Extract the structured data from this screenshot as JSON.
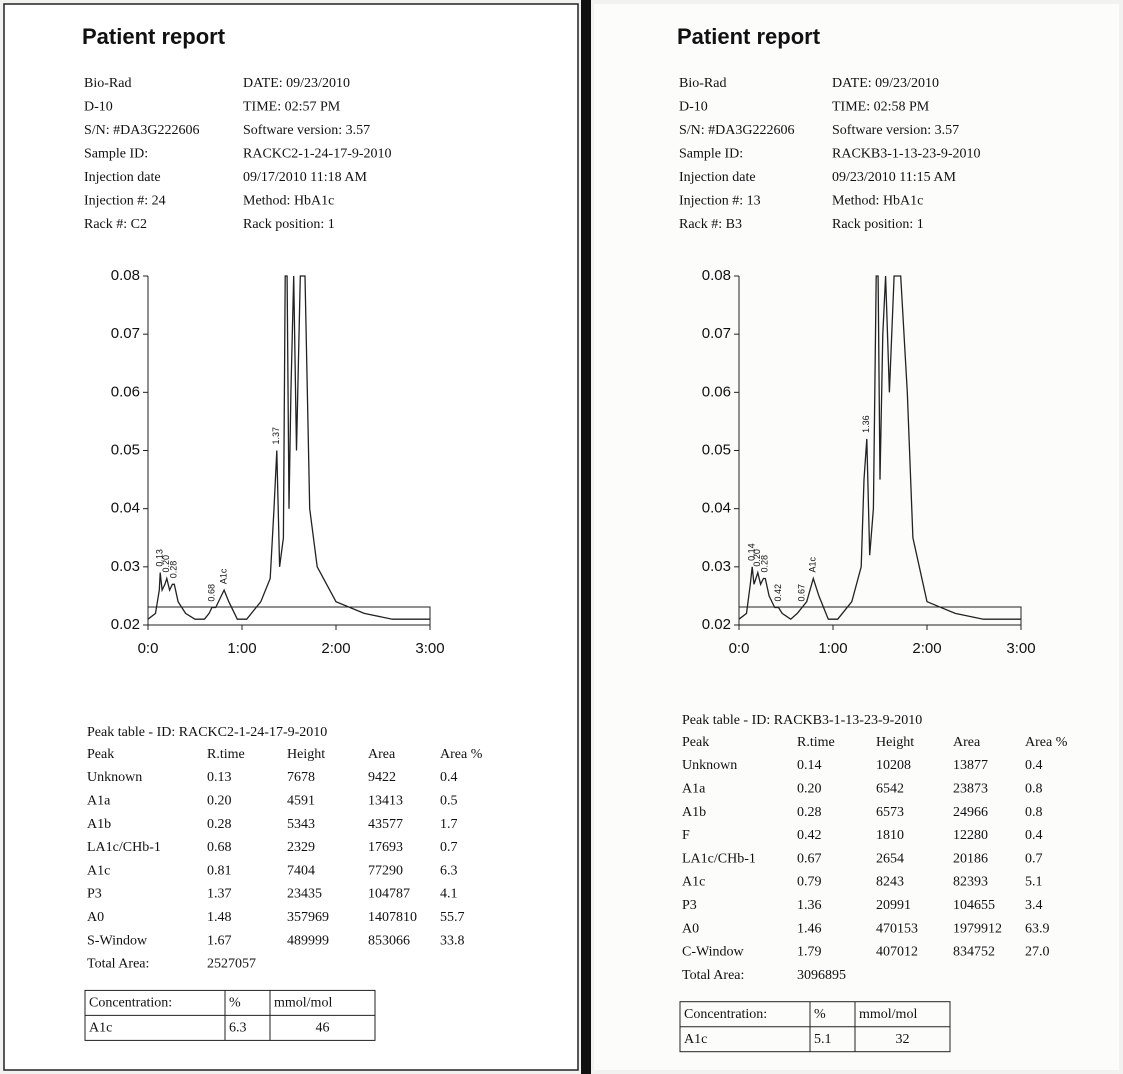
{
  "reports": [
    {
      "title": "Patient report",
      "header": [
        [
          "Bio-Rad",
          "DATE: 09/23/2010"
        ],
        [
          "D-10",
          "TIME:  02:57 PM"
        ],
        [
          "S/N: #DA3G222606",
          "Software version: 3.57"
        ],
        [
          "Sample ID:",
          "RACKC2-1-24-17-9-2010"
        ],
        [
          "Injection date",
          "09/17/2010 11:18 AM"
        ],
        [
          "Injection #: 24",
          "Method: HbA1c"
        ],
        [
          "Rack #: C2",
          "Rack position: 1"
        ]
      ],
      "chromatogram": {
        "type": "line",
        "xlim": [
          0,
          3
        ],
        "ylim": [
          0.02,
          0.08
        ],
        "yticks": [
          0.02,
          0.03,
          0.04,
          0.05,
          0.06,
          0.07,
          0.08
        ],
        "xticks": [
          {
            "value": 0,
            "label": "0:0"
          },
          {
            "value": 1,
            "label": "1:00"
          },
          {
            "value": 2,
            "label": "2:00"
          },
          {
            "value": 3,
            "label": "3:00"
          }
        ],
        "x": [
          0,
          0.08,
          0.12,
          0.13,
          0.15,
          0.18,
          0.2,
          0.23,
          0.26,
          0.28,
          0.32,
          0.4,
          0.5,
          0.6,
          0.65,
          0.68,
          0.72,
          0.78,
          0.81,
          0.86,
          0.95,
          1.05,
          1.2,
          1.3,
          1.34,
          1.37,
          1.4,
          1.44,
          1.46,
          1.48,
          1.5,
          1.52,
          1.55,
          1.58,
          1.62,
          1.67,
          1.72,
          1.8,
          2.0,
          2.3,
          2.6,
          3.0
        ],
        "y": [
          0.021,
          0.022,
          0.026,
          0.029,
          0.026,
          0.027,
          0.028,
          0.026,
          0.027,
          0.027,
          0.024,
          0.022,
          0.021,
          0.021,
          0.022,
          0.023,
          0.023,
          0.025,
          0.026,
          0.024,
          0.021,
          0.021,
          0.024,
          0.028,
          0.04,
          0.05,
          0.03,
          0.035,
          0.08,
          0.08,
          0.04,
          0.06,
          0.08,
          0.05,
          0.08,
          0.08,
          0.04,
          0.03,
          0.024,
          0.022,
          0.021,
          0.021
        ],
        "color": "#222",
        "peak_labels": [
          {
            "x": 0.13,
            "label": "0.13"
          },
          {
            "x": 0.2,
            "label": "0.20"
          },
          {
            "x": 0.28,
            "label": "0.28"
          },
          {
            "x": 0.68,
            "label": "0.68"
          },
          {
            "x": 0.81,
            "label": "A1c"
          },
          {
            "x": 1.37,
            "label": "1.37"
          }
        ]
      },
      "peak_table": {
        "title": "Peak table  -  ID: RACKC2-1-24-17-9-2010",
        "columns": [
          "Peak",
          "R.time",
          "Height",
          "Area",
          "Area %"
        ],
        "rows": [
          [
            "Unknown",
            "0.13",
            "7678",
            "9422",
            "0.4"
          ],
          [
            "A1a",
            "0.20",
            "4591",
            "13413",
            "0.5"
          ],
          [
            "A1b",
            "0.28",
            "5343",
            "43577",
            "1.7"
          ],
          [
            "LA1c/CHb-1",
            "0.68",
            "2329",
            "17693",
            "0.7"
          ],
          [
            "A1c",
            "0.81",
            "7404",
            "77290",
            "6.3"
          ],
          [
            "P3",
            "1.37",
            "23435",
            "104787",
            "4.1"
          ],
          [
            "A0",
            "1.48",
            "357969",
            "1407810",
            "55.7"
          ],
          [
            "S-Window",
            "1.67",
            "489999",
            "853066",
            "33.8"
          ]
        ],
        "total": [
          "Total Area:",
          "2527057"
        ]
      },
      "concentration": [
        [
          "Concentration:",
          "%",
          "mmol/mol"
        ],
        [
          "A1c",
          "6.3",
          "46"
        ]
      ]
    },
    {
      "title": "Patient report",
      "header": [
        [
          "Bio-Rad",
          "DATE: 09/23/2010"
        ],
        [
          "D-10",
          "TIME:  02:58 PM"
        ],
        [
          "S/N: #DA3G222606",
          "Software version: 3.57"
        ],
        [
          "Sample ID:",
          "RACKB3-1-13-23-9-2010"
        ],
        [
          "Injection date",
          "09/23/2010 11:15 AM"
        ],
        [
          "Injection #: 13",
          "Method: HbA1c"
        ],
        [
          "Rack #: B3",
          "Rack position: 1"
        ]
      ],
      "chromatogram": {
        "type": "line",
        "xlim": [
          0,
          3
        ],
        "ylim": [
          0.02,
          0.08
        ],
        "yticks": [
          0.02,
          0.03,
          0.04,
          0.05,
          0.06,
          0.07,
          0.08
        ],
        "xticks": [
          {
            "value": 0,
            "label": "0:0"
          },
          {
            "value": 1,
            "label": "1:00"
          },
          {
            "value": 2,
            "label": "2:00"
          },
          {
            "value": 3,
            "label": "3:00"
          }
        ],
        "x": [
          0,
          0.08,
          0.12,
          0.14,
          0.16,
          0.18,
          0.2,
          0.23,
          0.26,
          0.28,
          0.32,
          0.38,
          0.42,
          0.46,
          0.55,
          0.62,
          0.67,
          0.72,
          0.79,
          0.85,
          0.95,
          1.05,
          1.2,
          1.3,
          1.33,
          1.36,
          1.39,
          1.43,
          1.46,
          1.48,
          1.5,
          1.53,
          1.56,
          1.6,
          1.65,
          1.72,
          1.79,
          1.85,
          2.0,
          2.3,
          2.6,
          3.0
        ],
        "y": [
          0.021,
          0.022,
          0.027,
          0.03,
          0.027,
          0.028,
          0.029,
          0.027,
          0.028,
          0.028,
          0.025,
          0.023,
          0.023,
          0.022,
          0.021,
          0.022,
          0.023,
          0.024,
          0.028,
          0.025,
          0.021,
          0.021,
          0.024,
          0.03,
          0.045,
          0.052,
          0.032,
          0.04,
          0.08,
          0.08,
          0.045,
          0.07,
          0.08,
          0.06,
          0.08,
          0.08,
          0.06,
          0.035,
          0.024,
          0.022,
          0.021,
          0.021
        ],
        "color": "#222",
        "peak_labels": [
          {
            "x": 0.14,
            "label": "0.14"
          },
          {
            "x": 0.2,
            "label": "0.20"
          },
          {
            "x": 0.28,
            "label": "0.28"
          },
          {
            "x": 0.42,
            "label": "0.42"
          },
          {
            "x": 0.67,
            "label": "0.67"
          },
          {
            "x": 0.79,
            "label": "A1c"
          },
          {
            "x": 1.36,
            "label": "1.36"
          }
        ]
      },
      "peak_table": {
        "title": "Peak table  -  ID: RACKB3-1-13-23-9-2010",
        "columns": [
          "Peak",
          "R.time",
          "Height",
          "Area",
          "Area %"
        ],
        "rows": [
          [
            "Unknown",
            "0.14",
            "10208",
            "13877",
            "0.4"
          ],
          [
            "A1a",
            "0.20",
            "6542",
            "23873",
            "0.8"
          ],
          [
            "A1b",
            "0.28",
            "6573",
            "24966",
            "0.8"
          ],
          [
            "F",
            "0.42",
            "1810",
            "12280",
            "0.4"
          ],
          [
            "LA1c/CHb-1",
            "0.67",
            "2654",
            "20186",
            "0.7"
          ],
          [
            "A1c",
            "0.79",
            "8243",
            "82393",
            "5.1"
          ],
          [
            "P3",
            "1.36",
            "20991",
            "104655",
            "3.4"
          ],
          [
            "A0",
            "1.46",
            "470153",
            "1979912",
            "63.9"
          ],
          [
            "C-Window",
            "1.79",
            "407012",
            "834752",
            "27.0"
          ]
        ],
        "total": [
          "Total Area:",
          "3096895"
        ]
      },
      "concentration": [
        [
          "Concentration:",
          "%",
          "mmol/mol"
        ],
        [
          "A1c",
          "5.1",
          "32"
        ]
      ]
    }
  ]
}
